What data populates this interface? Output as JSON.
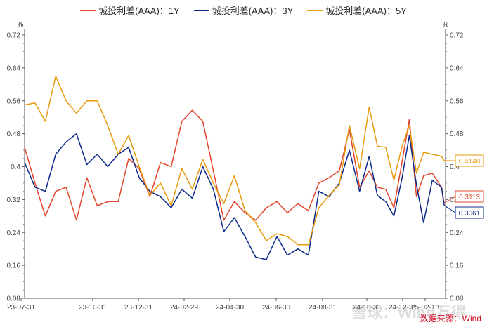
{
  "chart_data": {
    "type": "line",
    "title": "",
    "xlabel": "",
    "ylabel": "%",
    "ylabel_right": "%",
    "ylim": [
      0.08,
      0.72
    ],
    "yticks": [
      "0.72",
      "0.64",
      "0.56",
      "0.48",
      "0.4",
      "0.32",
      "0.24",
      "0.16",
      "0.08"
    ],
    "xticks": [
      "23-07-31",
      "23-10-31",
      "23-12-31",
      "24-02-29",
      "24-04-30",
      "24-06-30",
      "24-08-31",
      "24-10-31",
      "24-12-31",
      "25-02-13"
    ],
    "grid": false,
    "legend_position": "top",
    "x": [
      "2023-07-31",
      "2023-08-14",
      "2023-08-28",
      "2023-09-11",
      "2023-09-25",
      "2023-10-09",
      "2023-10-23",
      "2023-11-06",
      "2023-11-20",
      "2023-12-04",
      "2023-12-18",
      "2024-01-01",
      "2024-01-15",
      "2024-01-29",
      "2024-02-12",
      "2024-02-26",
      "2024-03-11",
      "2024-03-25",
      "2024-04-08",
      "2024-04-22",
      "2024-05-06",
      "2024-05-20",
      "2024-06-03",
      "2024-06-17",
      "2024-07-01",
      "2024-07-15",
      "2024-07-29",
      "2024-08-12",
      "2024-08-26",
      "2024-09-09",
      "2024-09-23",
      "2024-10-07",
      "2024-10-21",
      "2024-11-04",
      "2024-11-18",
      "2024-12-02",
      "2024-12-16",
      "2024-12-30",
      "2025-01-13",
      "2025-01-27",
      "2025-02-10",
      "2025-02-24",
      "2025-03-10",
      "2025-03-14"
    ],
    "series": [
      {
        "name": "城投利差(AAA)：1Y",
        "color": "#E2452A",
        "end_label": "0.3113",
        "values": [
          0.447,
          0.36,
          0.28,
          0.34,
          0.35,
          0.27,
          0.373,
          0.305,
          0.315,
          0.315,
          0.42,
          0.395,
          0.327,
          0.41,
          0.4,
          0.51,
          0.537,
          0.51,
          0.39,
          0.27,
          0.315,
          0.288,
          0.27,
          0.3,
          0.315,
          0.288,
          0.31,
          0.293,
          0.36,
          0.373,
          0.39,
          0.49,
          0.35,
          0.39,
          0.35,
          0.345,
          0.3,
          0.412,
          0.515,
          0.327,
          0.378,
          0.384,
          0.35,
          0.3113
        ]
      },
      {
        "name": "城投利差(AAA)：3Y",
        "color": "#0B2A8A",
        "end_label": "0.3061",
        "values": [
          0.41,
          0.35,
          0.34,
          0.43,
          0.46,
          0.48,
          0.405,
          0.43,
          0.4,
          0.43,
          0.447,
          0.373,
          0.34,
          0.327,
          0.3,
          0.345,
          0.323,
          0.4,
          0.345,
          0.242,
          0.276,
          0.23,
          0.18,
          0.174,
          0.23,
          0.185,
          0.2,
          0.185,
          0.34,
          0.327,
          0.36,
          0.44,
          0.34,
          0.425,
          0.33,
          0.315,
          0.28,
          0.373,
          0.476,
          0.356,
          0.264,
          0.367,
          0.35,
          0.3061
        ]
      },
      {
        "name": "城投利差(AAA)：5Y",
        "color": "#E89A0E",
        "end_label": "0.4148",
        "values": [
          0.55,
          0.555,
          0.51,
          0.62,
          0.56,
          0.53,
          0.56,
          0.56,
          0.5,
          0.43,
          0.476,
          0.4,
          0.33,
          0.36,
          0.305,
          0.395,
          0.345,
          0.418,
          0.36,
          0.31,
          0.378,
          0.293,
          0.264,
          0.22,
          0.237,
          0.23,
          0.21,
          0.21,
          0.3,
          0.33,
          0.356,
          0.5,
          0.395,
          0.545,
          0.45,
          0.447,
          0.367,
          0.45,
          0.5,
          0.384,
          0.435,
          0.43,
          0.425,
          0.4148
        ]
      }
    ]
  },
  "source": "数据来源：Wind",
  "watermark": "雪球：Wind万得"
}
